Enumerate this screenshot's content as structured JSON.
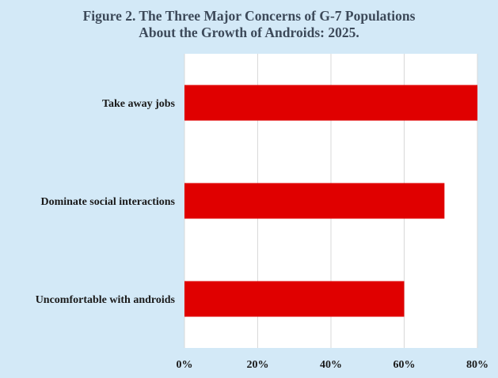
{
  "chart_data": {
    "type": "bar",
    "orientation": "horizontal",
    "title": "Figure 2. The Three Major Concerns of G-7 Populations About the Growth of Androids: 2025.",
    "title_lines": [
      "Figure 2. The Three Major Concerns of G-7 Populations",
      "About the Growth of Androids: 2025."
    ],
    "categories": [
      "Take away jobs",
      "Dominate social interactions",
      "Uncomfortable with androids"
    ],
    "values": [
      80,
      71,
      60
    ],
    "xlim": [
      0,
      80
    ],
    "x_ticks": [
      0,
      20,
      40,
      60,
      80
    ],
    "x_tick_labels": [
      "0%",
      "20%",
      "40%",
      "60%",
      "80%"
    ],
    "xlabel": "",
    "ylabel": "",
    "grid": true,
    "legend": "none",
    "bar_color": "#e00000",
    "plot_background": "#ffffff",
    "page_background": "#d3e9f7"
  }
}
